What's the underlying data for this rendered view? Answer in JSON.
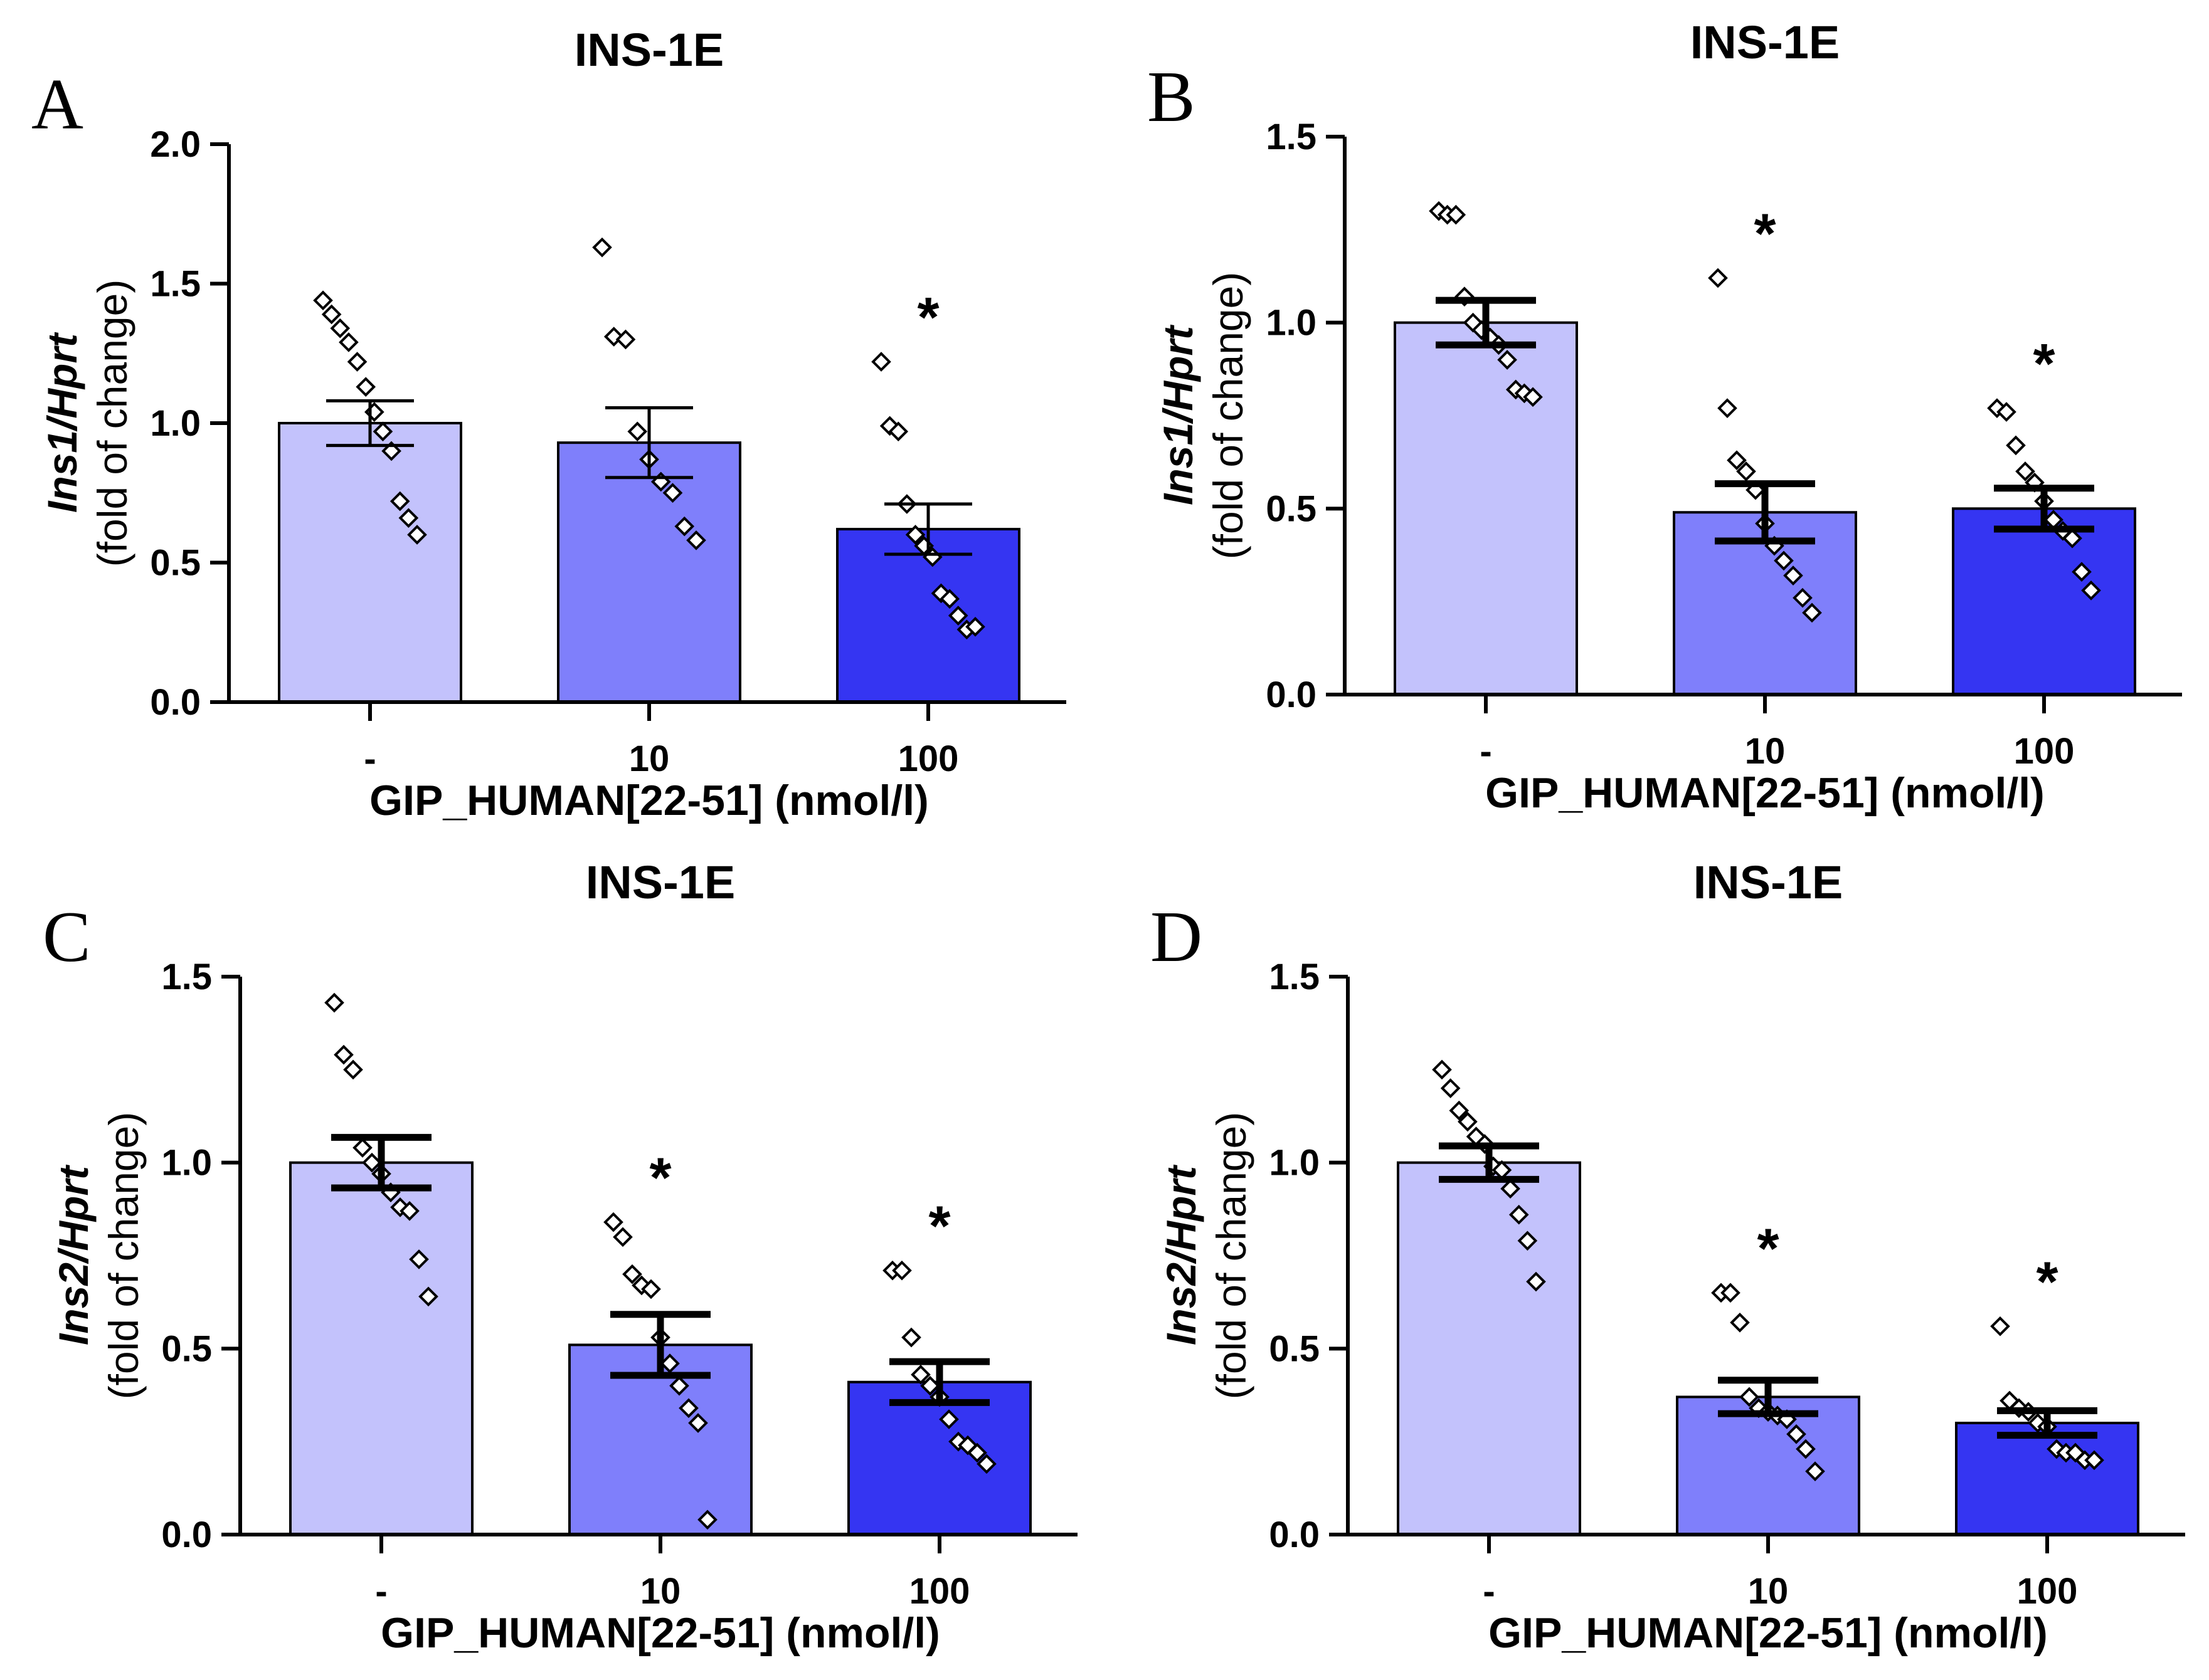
{
  "figure": {
    "x_axis_title": "GIP_HUMAN[22-51] (nmol/l)",
    "y_axis_unit": "(fold of change)",
    "significance_symbol": "*"
  },
  "colors": {
    "bars": [
      "#c3c2fc",
      "#7f7ffb",
      "#3535f2"
    ],
    "bar_edge": "#000000",
    "axis": "#000000",
    "point_fill": "#ffffff",
    "point_edge": "#000000"
  },
  "chart_data": [
    {
      "panel": "A",
      "type": "bar",
      "title": "INS-1E",
      "ylabel": "Ins1/Hprt",
      "xlabel": "GIP_HUMAN[22-51] (nmol/l)",
      "categories": [
        "-",
        "10",
        "100"
      ],
      "values": [
        1.0,
        0.93,
        0.62
      ],
      "sem": [
        0.08,
        0.125,
        0.09
      ],
      "significant": [
        false,
        false,
        true
      ],
      "points": [
        [
          1.44,
          1.39,
          1.34,
          1.29,
          1.22,
          1.13,
          1.04,
          0.97,
          0.9,
          0.72,
          0.66,
          0.6
        ],
        [
          1.63,
          1.31,
          1.3,
          0.97,
          0.87,
          0.79,
          0.75,
          0.63,
          0.58
        ],
        [
          1.22,
          0.99,
          0.97,
          0.71,
          0.6,
          0.56,
          0.52,
          0.39,
          0.37,
          0.31,
          0.26,
          0.27
        ]
      ],
      "ylim": [
        0,
        2.0
      ],
      "yticks": [
        0.0,
        0.5,
        1.0,
        1.5,
        2.0
      ],
      "ytick_labels": [
        "0.0",
        "0.5",
        "1.0",
        "1.5",
        "2.0"
      ]
    },
    {
      "panel": "B",
      "type": "bar",
      "title": "INS-1E",
      "ylabel": "Ins1/Hprt",
      "xlabel": "GIP_HUMAN[22-51] (nmol/l)",
      "categories": [
        "-",
        "10",
        "100"
      ],
      "values": [
        1.0,
        0.49,
        0.5
      ],
      "sem": [
        0.06,
        0.077,
        0.055
      ],
      "significant": [
        false,
        true,
        true
      ],
      "points": [
        [
          1.3,
          1.29,
          1.29,
          1.07,
          1.0,
          0.98,
          0.96,
          0.94,
          0.9,
          0.82,
          0.81,
          0.8
        ],
        [
          1.12,
          0.77,
          0.63,
          0.6,
          0.55,
          0.46,
          0.4,
          0.36,
          0.32,
          0.26,
          0.22
        ],
        [
          0.77,
          0.76,
          0.67,
          0.6,
          0.57,
          0.52,
          0.47,
          0.44,
          0.42,
          0.33,
          0.28
        ]
      ],
      "ylim": [
        0,
        1.5
      ],
      "yticks": [
        0.0,
        0.5,
        1.0,
        1.5
      ],
      "ytick_labels": [
        "0.0",
        "0.5",
        "1.0",
        "1.5"
      ]
    },
    {
      "panel": "C",
      "type": "bar",
      "title": "INS-1E",
      "ylabel": "Ins2/Hprt",
      "xlabel": "GIP_HUMAN[22-51] (nmol/l)",
      "categories": [
        "-",
        "10",
        "100"
      ],
      "values": [
        1.0,
        0.51,
        0.41
      ],
      "sem": [
        0.068,
        0.082,
        0.055
      ],
      "significant": [
        false,
        true,
        true
      ],
      "points": [
        [
          1.43,
          1.29,
          1.25,
          1.04,
          1.0,
          0.97,
          0.92,
          0.88,
          0.87,
          0.74,
          0.64
        ],
        [
          0.84,
          0.8,
          0.7,
          0.67,
          0.66,
          0.53,
          0.46,
          0.4,
          0.34,
          0.3,
          0.04
        ],
        [
          0.71,
          0.71,
          0.53,
          0.43,
          0.4,
          0.37,
          0.31,
          0.25,
          0.24,
          0.22,
          0.19
        ]
      ],
      "ylim": [
        0,
        1.5
      ],
      "yticks": [
        0.0,
        0.5,
        1.0,
        1.5
      ],
      "ytick_labels": [
        "0.0",
        "0.5",
        "1.0",
        "1.5"
      ]
    },
    {
      "panel": "D",
      "type": "bar",
      "title": "INS-1E",
      "ylabel": "Ins2/Hprt",
      "xlabel": "GIP_HUMAN[22-51] (nmol/l)",
      "categories": [
        "-",
        "10",
        "100"
      ],
      "values": [
        1.0,
        0.37,
        0.3
      ],
      "sem": [
        0.045,
        0.045,
        0.033
      ],
      "significant": [
        false,
        true,
        true
      ],
      "points": [
        [
          1.25,
          1.2,
          1.14,
          1.11,
          1.07,
          1.05,
          0.99,
          0.98,
          0.93,
          0.86,
          0.79,
          0.68
        ],
        [
          0.65,
          0.65,
          0.57,
          0.37,
          0.34,
          0.33,
          0.32,
          0.31,
          0.27,
          0.23,
          0.17
        ],
        [
          0.56,
          0.36,
          0.34,
          0.33,
          0.3,
          0.29,
          0.23,
          0.22,
          0.22,
          0.2,
          0.2
        ]
      ],
      "ylim": [
        0,
        1.5
      ],
      "yticks": [
        0.0,
        0.5,
        1.0,
        1.5
      ],
      "ytick_labels": [
        "0.0",
        "0.5",
        "1.0",
        "1.5"
      ]
    }
  ]
}
